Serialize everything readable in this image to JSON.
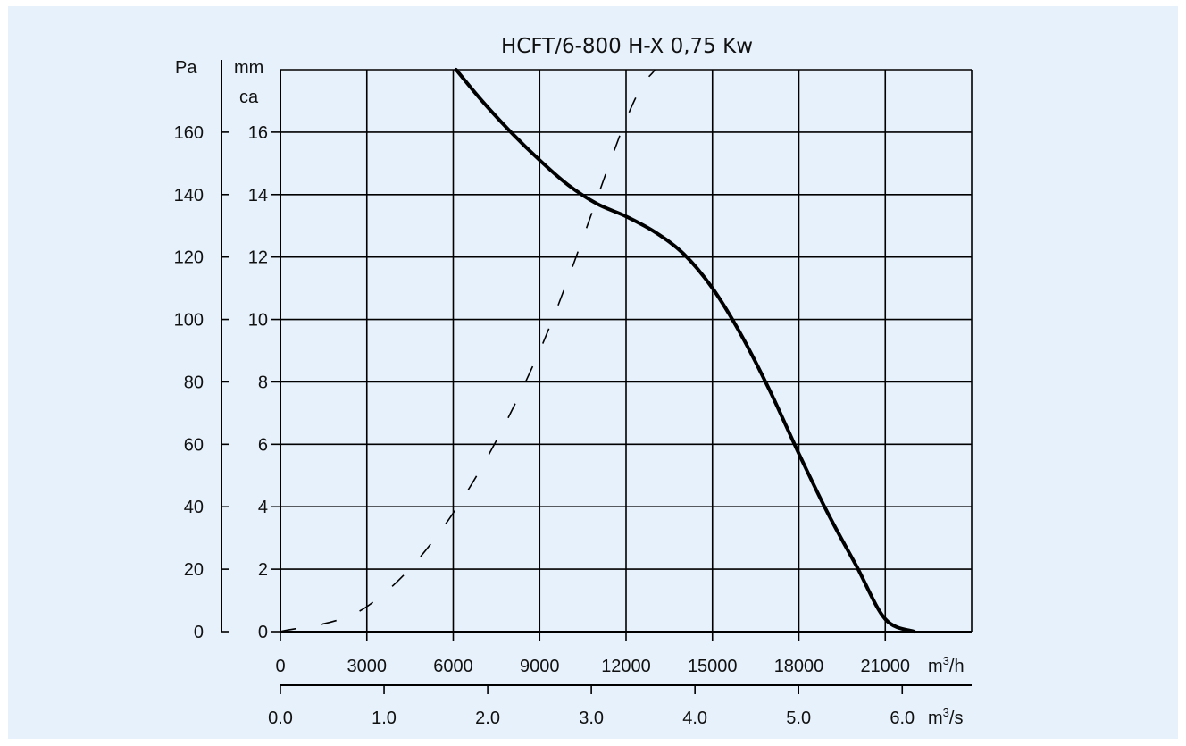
{
  "colors": {
    "panel_bg": "#e6f1fb",
    "page_bg": "#ffffff",
    "ink": "#000000"
  },
  "chart_data": {
    "type": "line",
    "title": "HCFT/6-800 H-X 0,75 Kw",
    "grid": true,
    "x_axis": {
      "unit_prefix": "m",
      "unit_sup": "3",
      "unit_suffix": "/h",
      "range": [
        0,
        24000
      ],
      "ticks": [
        0,
        3000,
        6000,
        9000,
        12000,
        15000,
        18000,
        21000
      ],
      "tick_labels": [
        "0",
        "3000",
        "6000",
        "9000",
        "12000",
        "15000",
        "18000",
        "21000"
      ]
    },
    "x2_axis": {
      "unit_prefix": "m",
      "unit_sup": "3",
      "unit_suffix": "/s",
      "range": [
        0,
        6.67
      ],
      "ticks": [
        0,
        1,
        2,
        3,
        4,
        5,
        6
      ],
      "tick_labels": [
        "0.0",
        "1.0",
        "2.0",
        "3.0",
        "4.0",
        "5.0",
        "6.0"
      ]
    },
    "y_axis": {
      "label": "Pa",
      "range": [
        0,
        180
      ],
      "ticks": [
        0,
        20,
        40,
        60,
        80,
        100,
        120,
        140,
        160
      ],
      "tick_labels": [
        "0",
        "20",
        "40",
        "60",
        "80",
        "100",
        "120",
        "140",
        "160"
      ]
    },
    "y2_axis": {
      "label_line1": "mm",
      "label_line2": "ca",
      "range": [
        0,
        18
      ],
      "ticks": [
        0,
        2,
        4,
        6,
        8,
        10,
        12,
        14,
        16
      ],
      "tick_labels": [
        "0",
        "2",
        "4",
        "6",
        "8",
        "10",
        "12",
        "14",
        "16"
      ]
    },
    "series": [
      {
        "style": "solid",
        "x": [
          6100,
          7000,
          8000,
          9000,
          10000,
          11000,
          12000,
          13000,
          14000,
          15000,
          16000,
          17000,
          18000,
          19000,
          20000,
          21000,
          22000
        ],
        "y": [
          180,
          170,
          160,
          151,
          143,
          137,
          133,
          128,
          121,
          110,
          95,
          77,
          57,
          38,
          21,
          4,
          0
        ],
        "y_unit": "Pa"
      },
      {
        "style": "dashed",
        "x": [
          0,
          3000,
          6000,
          9000,
          12000,
          13000
        ],
        "y": [
          0,
          8,
          38,
          90,
          164,
          180
        ],
        "y_unit": "Pa"
      }
    ]
  }
}
